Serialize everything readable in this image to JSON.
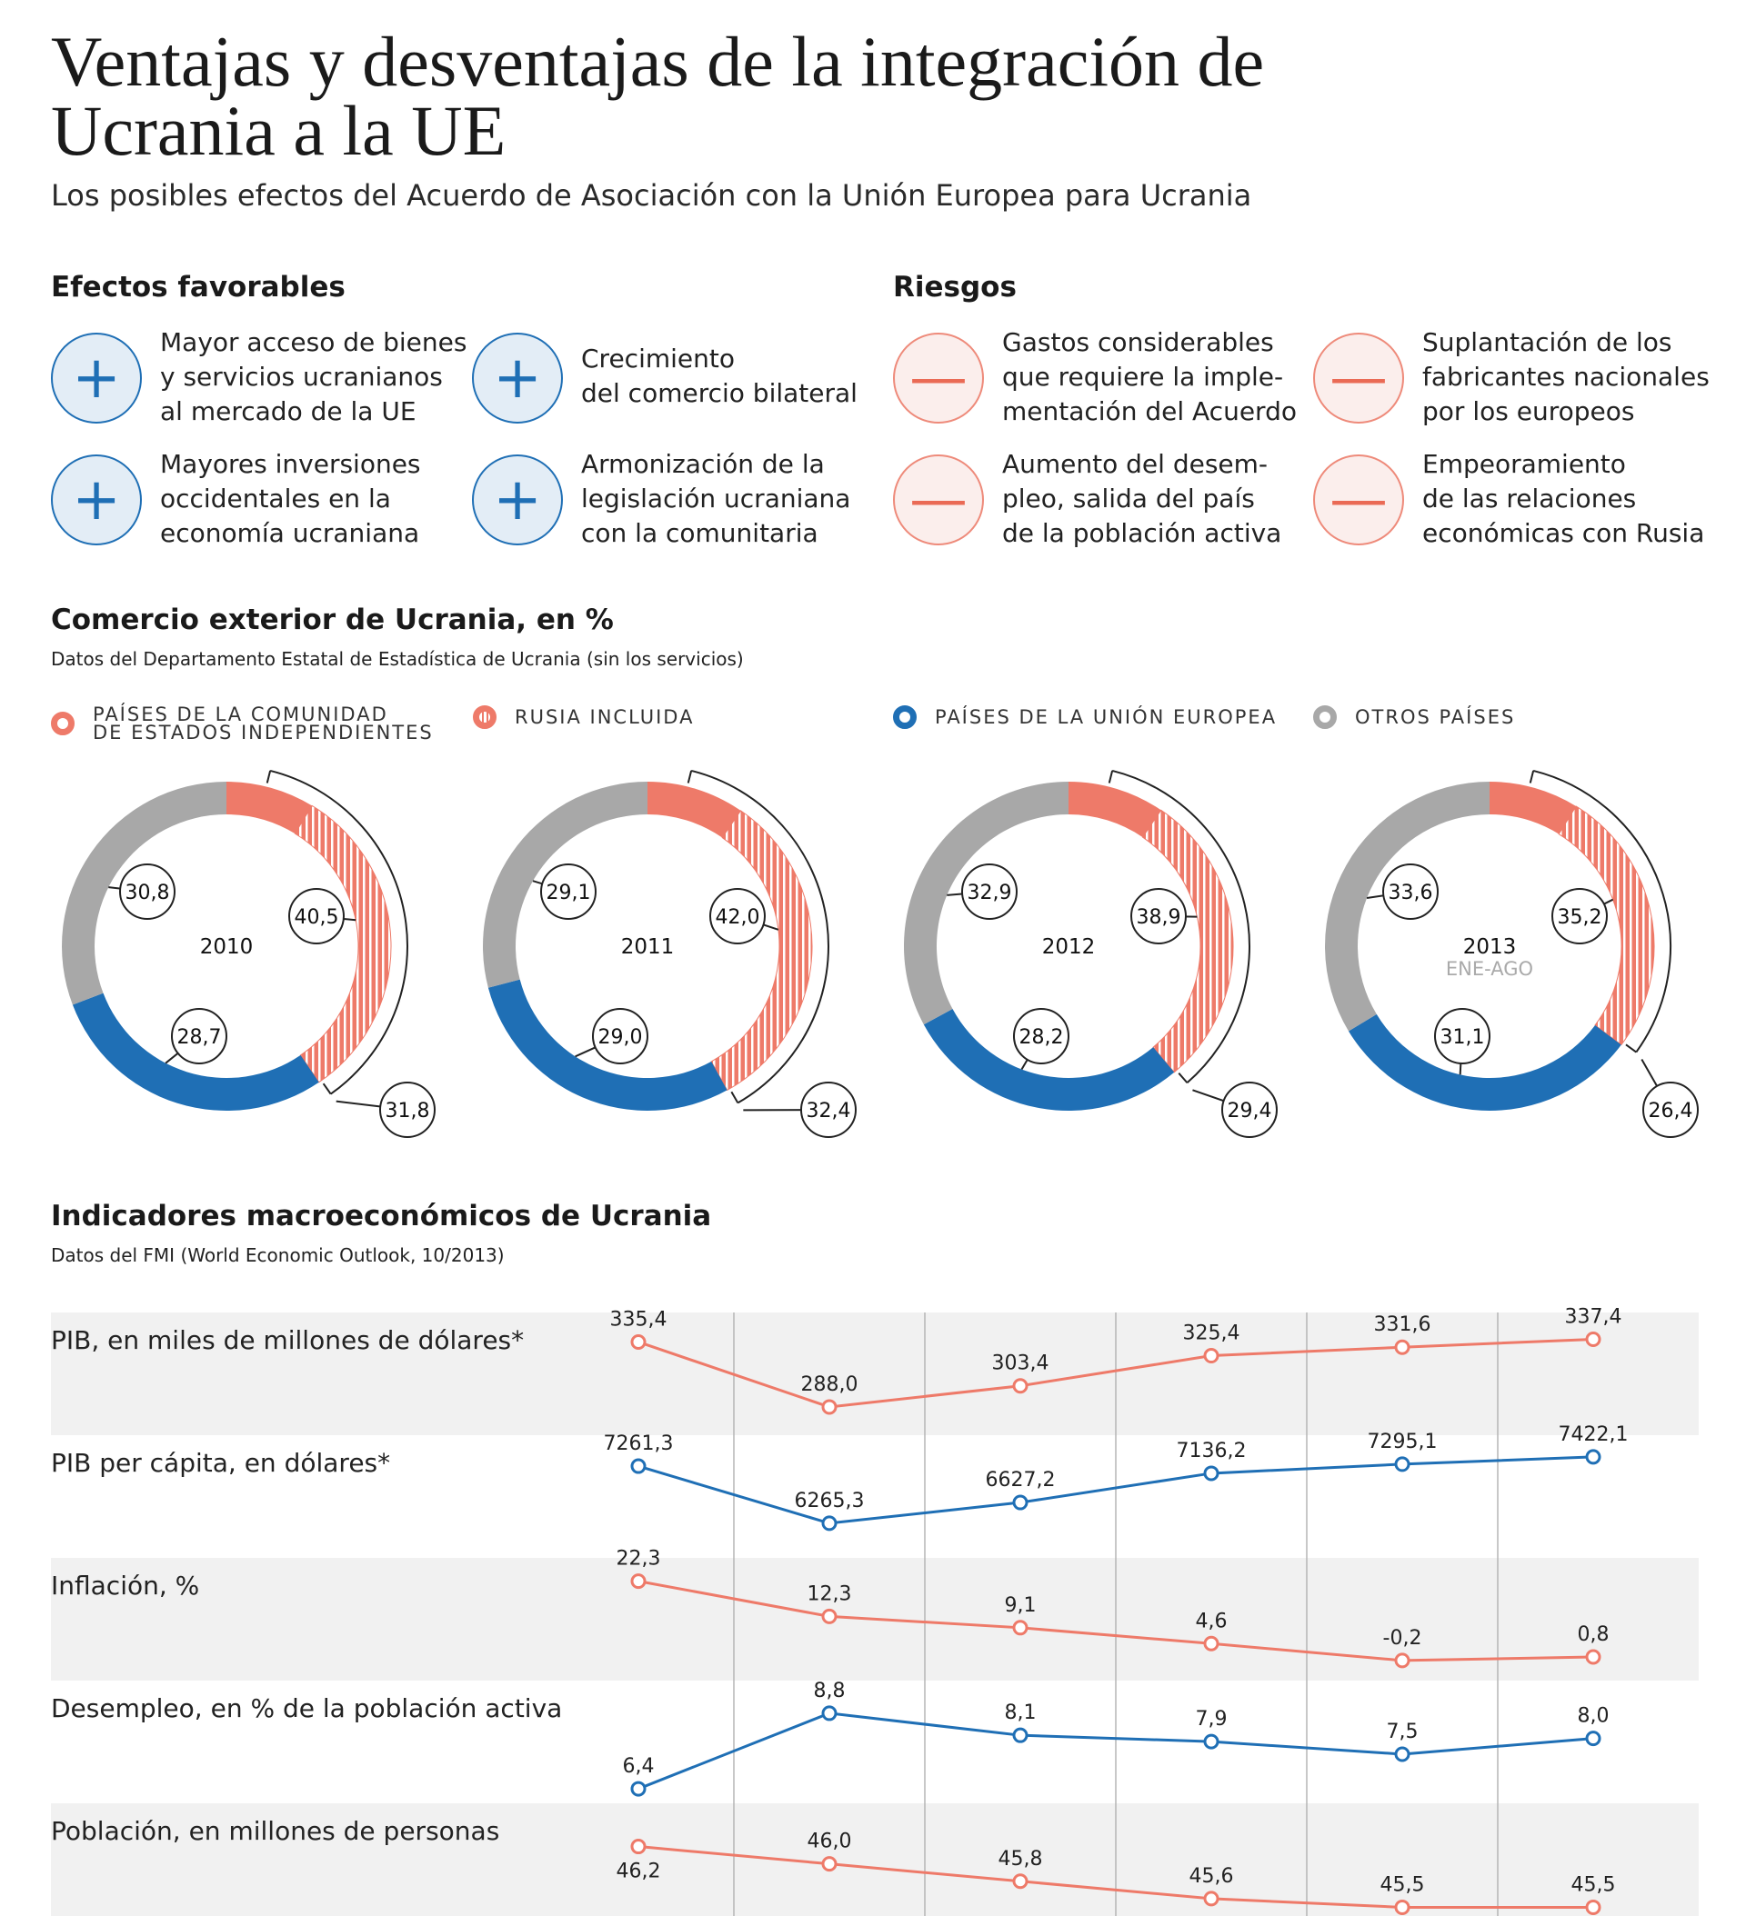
{
  "header": {
    "title": "Ventajas y desventajas de la integración de Ucrania a la UE",
    "subtitle": "Los posibles efectos del Acuerdo de Asociación con la Unión Europea para Ucrania"
  },
  "favorable": {
    "heading": "Efectos favorables",
    "items": [
      {
        "text": "Mayor acceso de bienes\ny servicios ucranianos\nal mercado de la UE",
        "icon": "plus-icon"
      },
      {
        "text": "Crecimiento\ndel comercio bilateral",
        "icon": "plus-icon"
      },
      {
        "text": "Mayores inversiones\noccidentales en la\neconomía ucraniana",
        "icon": "plus-icon"
      },
      {
        "text": "Armonización de la\nlegislación ucraniana\ncon la comunitaria",
        "icon": "plus-icon"
      }
    ]
  },
  "risks": {
    "heading": "Riesgos",
    "items": [
      {
        "text": "Gastos considerables\nque requiere la imple-\nmentación del Acuerdo",
        "icon": "minus-icon"
      },
      {
        "text": "Suplantación de los\nfabricantes nacionales\npor los europeos",
        "icon": "minus-icon"
      },
      {
        "text": "Aumento del desem-\npleo, salida del país\nde la población activa",
        "icon": "minus-icon"
      },
      {
        "text": "Empeoramiento\nde las relaciones\neconómicas con Rusia",
        "icon": "minus-icon"
      }
    ]
  },
  "trade": {
    "heading": "Comercio exterior de Ucrania, en %",
    "note": "Datos del Departamento Estatal de Estadística de Ucrania (sin los servicios)",
    "legend": [
      {
        "label": "PAÍSES DE LA COMUNIDAD\nDE ESTADOS INDEPENDIENTES",
        "color": "#ee7a69",
        "style": "ring"
      },
      {
        "label": "RUSIA INCLUIDA",
        "color": "#ee7a69",
        "style": "hatched"
      },
      {
        "label": "PAÍSES DE LA UNIÓN EUROPEA",
        "color": "#1f6fb5",
        "style": "ring"
      },
      {
        "label": "OTROS PAÍSES",
        "color": "#a8a8a8",
        "style": "ring"
      }
    ]
  },
  "macro": {
    "heading": "Indicadores macroeconómicos de Ucrania",
    "note": "Datos del FMI (World Economic Outlook, 10/2013)"
  },
  "colors": {
    "red": "#ee7a69",
    "blue": "#1f6fb5",
    "gray": "#a8a8a8",
    "band": "#f1f1f1"
  },
  "chart_data": [
    {
      "type": "pie",
      "title": "Comercio exterior de Ucrania, en %",
      "donuts": [
        {
          "year": "2010",
          "sub": "",
          "cis": 40.5,
          "russia": 31.8,
          "eu": 28.7,
          "other": 30.8
        },
        {
          "year": "2011",
          "sub": "",
          "cis": 42.0,
          "russia": 32.4,
          "eu": 29.0,
          "other": 29.1
        },
        {
          "year": "2012",
          "sub": "",
          "cis": 38.9,
          "russia": 29.4,
          "eu": 28.2,
          "other": 32.9
        },
        {
          "year": "2013",
          "sub": "ENE-AGO",
          "cis": 35.2,
          "russia": 26.4,
          "eu": 31.1,
          "other": 33.6
        }
      ]
    },
    {
      "type": "line",
      "title": "Indicadores macroeconómicos de Ucrania",
      "series": [
        {
          "name": "PIB, en miles de millones de dólares*",
          "color": "red",
          "values": [
            335.4,
            288.0,
            303.4,
            325.4,
            331.6,
            337.4
          ],
          "labels": [
            "335,4",
            "288,0",
            "303,4",
            "325,4",
            "331,6",
            "337,4"
          ],
          "ylim": [
            280,
            345
          ]
        },
        {
          "name": "PIB per cápita, en dólares*",
          "color": "blue",
          "values": [
            7261.3,
            6265.3,
            6627.2,
            7136.2,
            7295.1,
            7422.1
          ],
          "labels": [
            "7261,3",
            "6265,3",
            "6627,2",
            "7136,2",
            "7295,1",
            "7422,1"
          ],
          "ylim": [
            6200,
            7500
          ]
        },
        {
          "name": "Inflación, %",
          "color": "red",
          "values": [
            22.3,
            12.3,
            9.1,
            4.6,
            -0.2,
            0.8
          ],
          "labels": [
            "22,3",
            "12,3",
            "9,1",
            "4,6",
            "-0,2",
            "0,8"
          ],
          "ylim": [
            -1,
            24
          ]
        },
        {
          "name": "Desempleo, en % de la población activa",
          "color": "blue",
          "values": [
            6.4,
            8.8,
            8.1,
            7.9,
            7.5,
            8.0
          ],
          "labels": [
            "6,4",
            "8,8",
            "8,1",
            "7,9",
            "7,5",
            "8,0"
          ],
          "ylim": [
            6.2,
            9.0
          ]
        },
        {
          "name": "Población, en millones de personas",
          "color": "red",
          "values": [
            46.2,
            46.0,
            45.8,
            45.6,
            45.5,
            45.5
          ],
          "labels": [
            "46,2",
            "46,0",
            "45,8",
            "45,6",
            "45,5",
            "45,5"
          ],
          "ylim": [
            45.4,
            46.3
          ]
        }
      ]
    }
  ]
}
